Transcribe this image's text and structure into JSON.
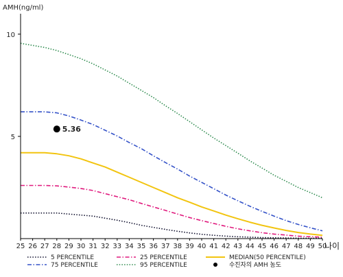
{
  "chart_data": {
    "type": "line",
    "ylabel": "AMH(ng/ml)",
    "xlabel": "나이",
    "x": [
      25,
      26,
      27,
      28,
      29,
      30,
      31,
      32,
      33,
      34,
      35,
      36,
      37,
      38,
      39,
      40,
      41,
      42,
      43,
      44,
      45,
      46,
      47,
      48,
      49,
      50
    ],
    "xlim": [
      25,
      50
    ],
    "ylim": [
      0,
      11
    ],
    "yticks": [
      5,
      10
    ],
    "series": [
      {
        "name": "5 PERCENTILE",
        "color": "#0d0d2b",
        "dash": "dot",
        "values": [
          1.25,
          1.25,
          1.25,
          1.25,
          1.2,
          1.15,
          1.1,
          1.0,
          0.9,
          0.78,
          0.65,
          0.55,
          0.45,
          0.36,
          0.28,
          0.21,
          0.16,
          0.12,
          0.09,
          0.07,
          0.05,
          0.04,
          0.03,
          0.02,
          0.02,
          0.02
        ]
      },
      {
        "name": "25 PERCENTILE",
        "color": "#e0197d",
        "dash": "dashdot",
        "values": [
          2.6,
          2.6,
          2.6,
          2.58,
          2.52,
          2.45,
          2.35,
          2.2,
          2.05,
          1.9,
          1.72,
          1.55,
          1.38,
          1.2,
          1.03,
          0.88,
          0.74,
          0.6,
          0.48,
          0.38,
          0.29,
          0.22,
          0.17,
          0.12,
          0.09,
          0.07
        ]
      },
      {
        "name": "MEDIAN(50 PERCENTILE)",
        "color": "#f2c40f",
        "dash": "solid",
        "values": [
          4.2,
          4.2,
          4.2,
          4.15,
          4.05,
          3.9,
          3.7,
          3.5,
          3.25,
          3.0,
          2.75,
          2.5,
          2.25,
          2.0,
          1.78,
          1.55,
          1.35,
          1.15,
          0.97,
          0.8,
          0.65,
          0.52,
          0.4,
          0.3,
          0.22,
          0.16
        ]
      },
      {
        "name": "75 PERCENTILE",
        "color": "#3452c8",
        "dash": "dashdot",
        "values": [
          6.2,
          6.2,
          6.2,
          6.15,
          6.0,
          5.8,
          5.58,
          5.3,
          5.02,
          4.7,
          4.4,
          4.05,
          3.72,
          3.4,
          3.06,
          2.75,
          2.44,
          2.13,
          1.85,
          1.58,
          1.33,
          1.1,
          0.88,
          0.69,
          0.53,
          0.38
        ]
      },
      {
        "name": "95 PERCENTILE",
        "color": "#2e8b4e",
        "dash": "dot",
        "values": [
          9.55,
          9.45,
          9.35,
          9.2,
          9.0,
          8.8,
          8.55,
          8.25,
          7.95,
          7.6,
          7.25,
          6.9,
          6.5,
          6.12,
          5.72,
          5.32,
          4.92,
          4.55,
          4.18,
          3.8,
          3.45,
          3.1,
          2.8,
          2.5,
          2.25,
          2.0
        ]
      }
    ],
    "highlight": {
      "name": "수진자의 AMH 농도",
      "x": 28,
      "y": 5.36,
      "label": "5.36",
      "color": "#000000"
    }
  }
}
